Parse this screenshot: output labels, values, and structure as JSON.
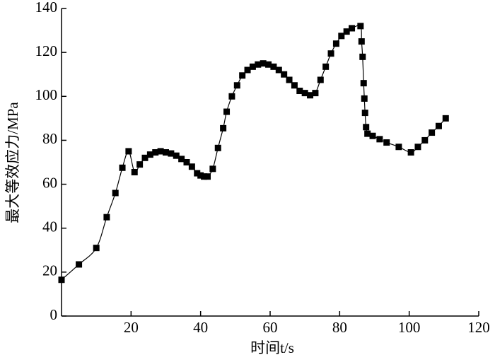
{
  "chart_data": {
    "type": "line",
    "xlabel": "时间t/s",
    "ylabel": "最大等效应力/MPa",
    "xlim": [
      0,
      120
    ],
    "xticks": [
      20,
      40,
      60,
      80,
      100,
      120
    ],
    "ylim": [
      0,
      140
    ],
    "yticks": [
      0,
      20,
      40,
      60,
      80,
      100,
      120,
      140
    ],
    "series": [
      {
        "color": "#000000",
        "x": [
          0,
          5,
          10,
          13,
          15.5,
          17.5,
          19.3,
          21,
          22.5,
          24,
          25.5,
          27,
          28.5,
          30,
          31.5,
          33,
          34.5,
          36,
          37.5,
          39,
          40,
          41,
          42,
          43.5,
          45,
          46.5,
          47.5,
          49,
          50.5,
          52,
          53.5,
          55,
          56.5,
          58,
          59.5,
          61,
          62.5,
          64,
          65.5,
          67,
          68.5,
          70,
          71.5,
          73,
          74.5,
          76,
          77.5,
          79,
          80.5,
          82,
          83.5,
          86,
          86.3,
          86.6,
          86.9,
          87.1,
          87.3,
          87.6,
          88,
          89.5,
          91.5,
          93.5,
          97,
          100.5,
          102.5,
          104.5,
          106.5,
          108.5,
          110.5
        ],
        "values": [
          16.5,
          23.5,
          31,
          45,
          56,
          67.5,
          75,
          65.5,
          69,
          72,
          73.5,
          74.5,
          75,
          74.5,
          74,
          73,
          71.5,
          70,
          68,
          65,
          64,
          63.5,
          63.5,
          67,
          76.5,
          85.5,
          93,
          100,
          105,
          109.5,
          112,
          113.5,
          114.5,
          115,
          114.5,
          113.5,
          112,
          110,
          107.5,
          105,
          102.5,
          101.5,
          100.5,
          101.5,
          107.5,
          113.5,
          119.5,
          124,
          127.5,
          129.5,
          131,
          132,
          125,
          118,
          106,
          99,
          92.5,
          86,
          83,
          82,
          80.5,
          79,
          77,
          74.5,
          77,
          80,
          83.5,
          86.5,
          90
        ]
      }
    ]
  }
}
